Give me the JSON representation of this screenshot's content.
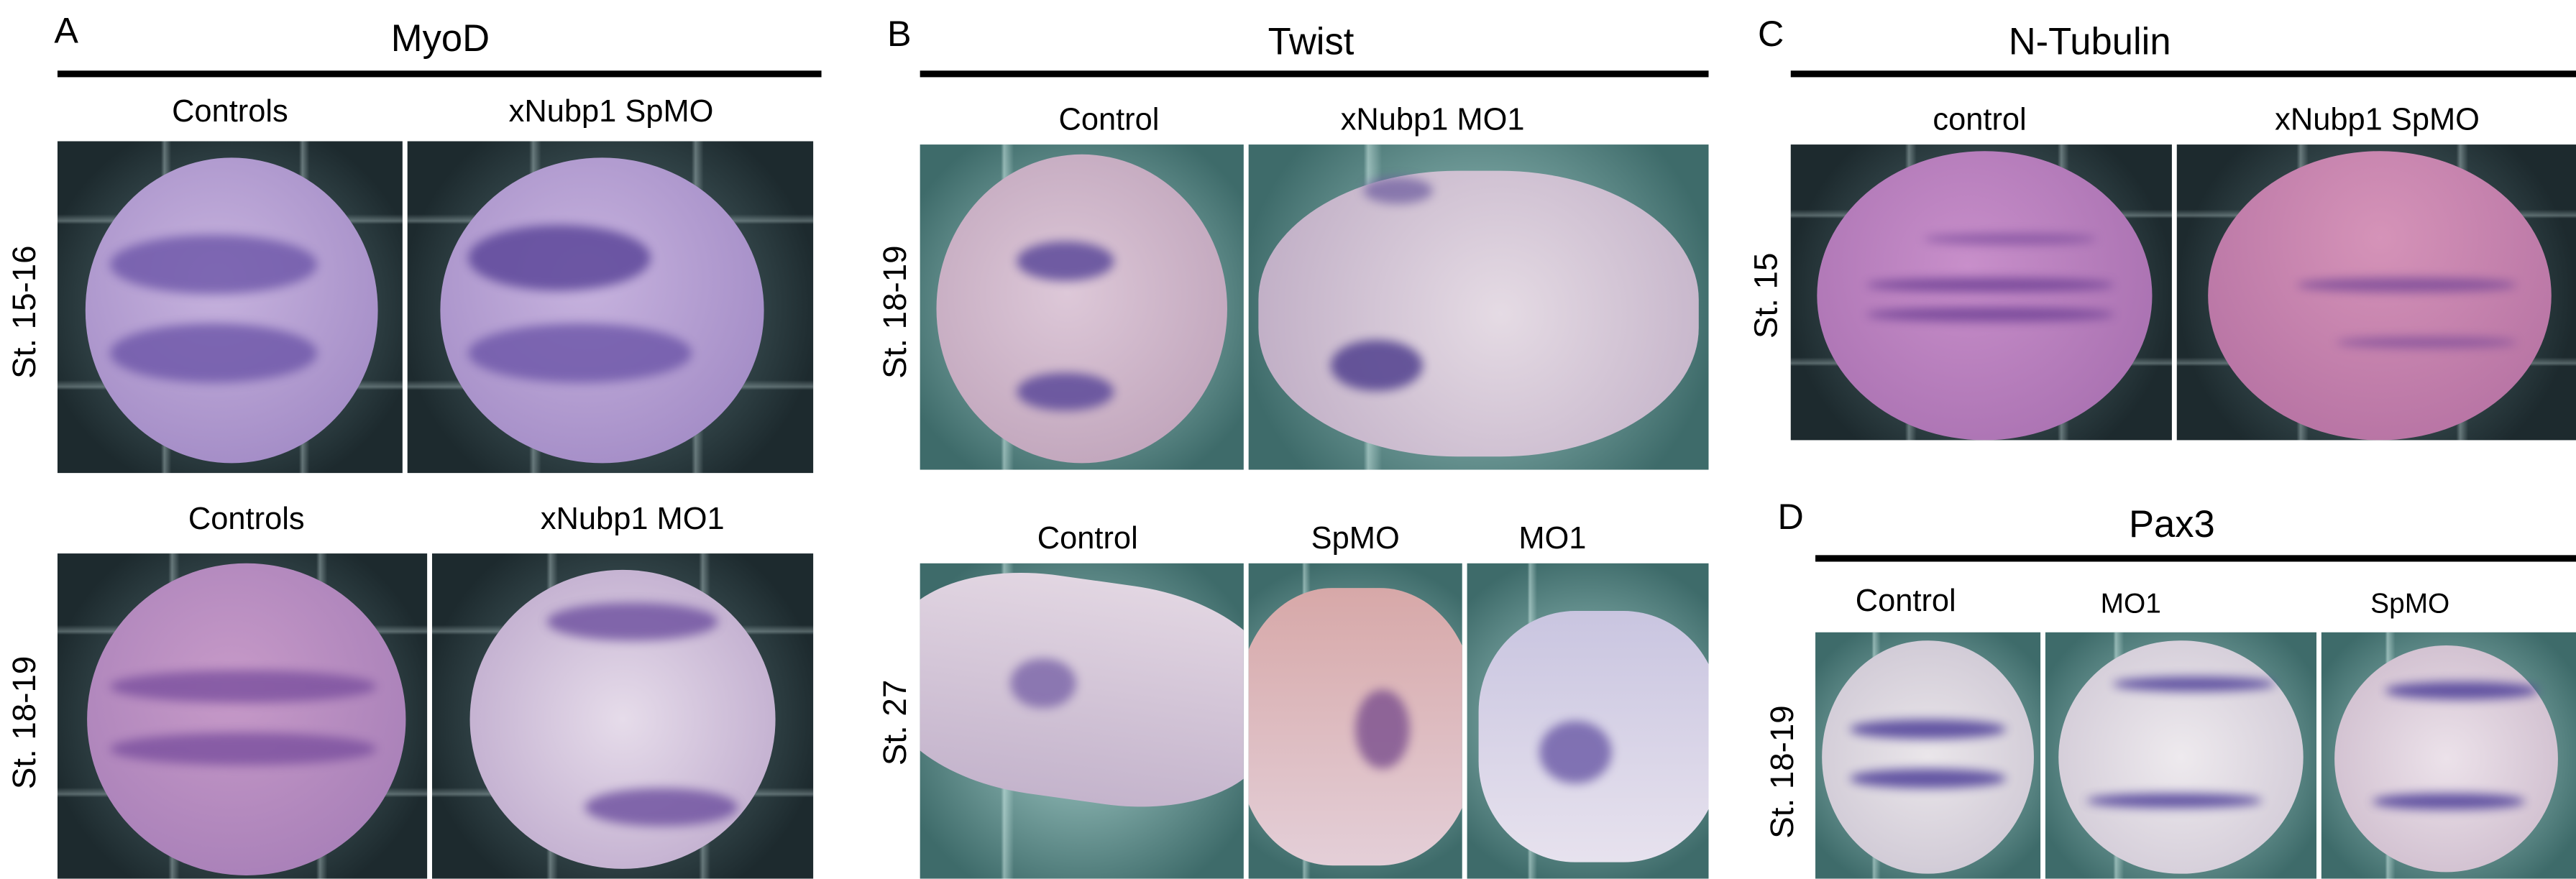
{
  "panels": {
    "A": {
      "letter": "A",
      "gene": "MyoD",
      "top_cols": [
        "Controls",
        "xNubp1 SpMO"
      ],
      "bottom_cols": [
        "Controls",
        "xNubp1 MO1"
      ],
      "stages": [
        "St. 15-16",
        "St. 18-19"
      ]
    },
    "B": {
      "letter": "B",
      "gene": "Twist",
      "top_cols": [
        "Control",
        "xNubp1 MO1"
      ],
      "bottom_cols": [
        "Control",
        "SpMO",
        "MO1"
      ],
      "stages": [
        "St. 18-19",
        "St. 27"
      ]
    },
    "C": {
      "letter": "C",
      "gene": "N-Tubulin",
      "cols": [
        "control",
        "xNubp1 SpMO"
      ],
      "stages": [
        "St. 15"
      ]
    },
    "D": {
      "letter": "D",
      "gene": "Pax3",
      "cols": [
        "Control",
        "MO1",
        "SpMO"
      ],
      "stages": [
        "St. 18-19"
      ]
    }
  },
  "colors": {
    "embryo": "#b59ac9",
    "stain": "#5a3f95",
    "pink_embryo": "#c68cb8"
  }
}
